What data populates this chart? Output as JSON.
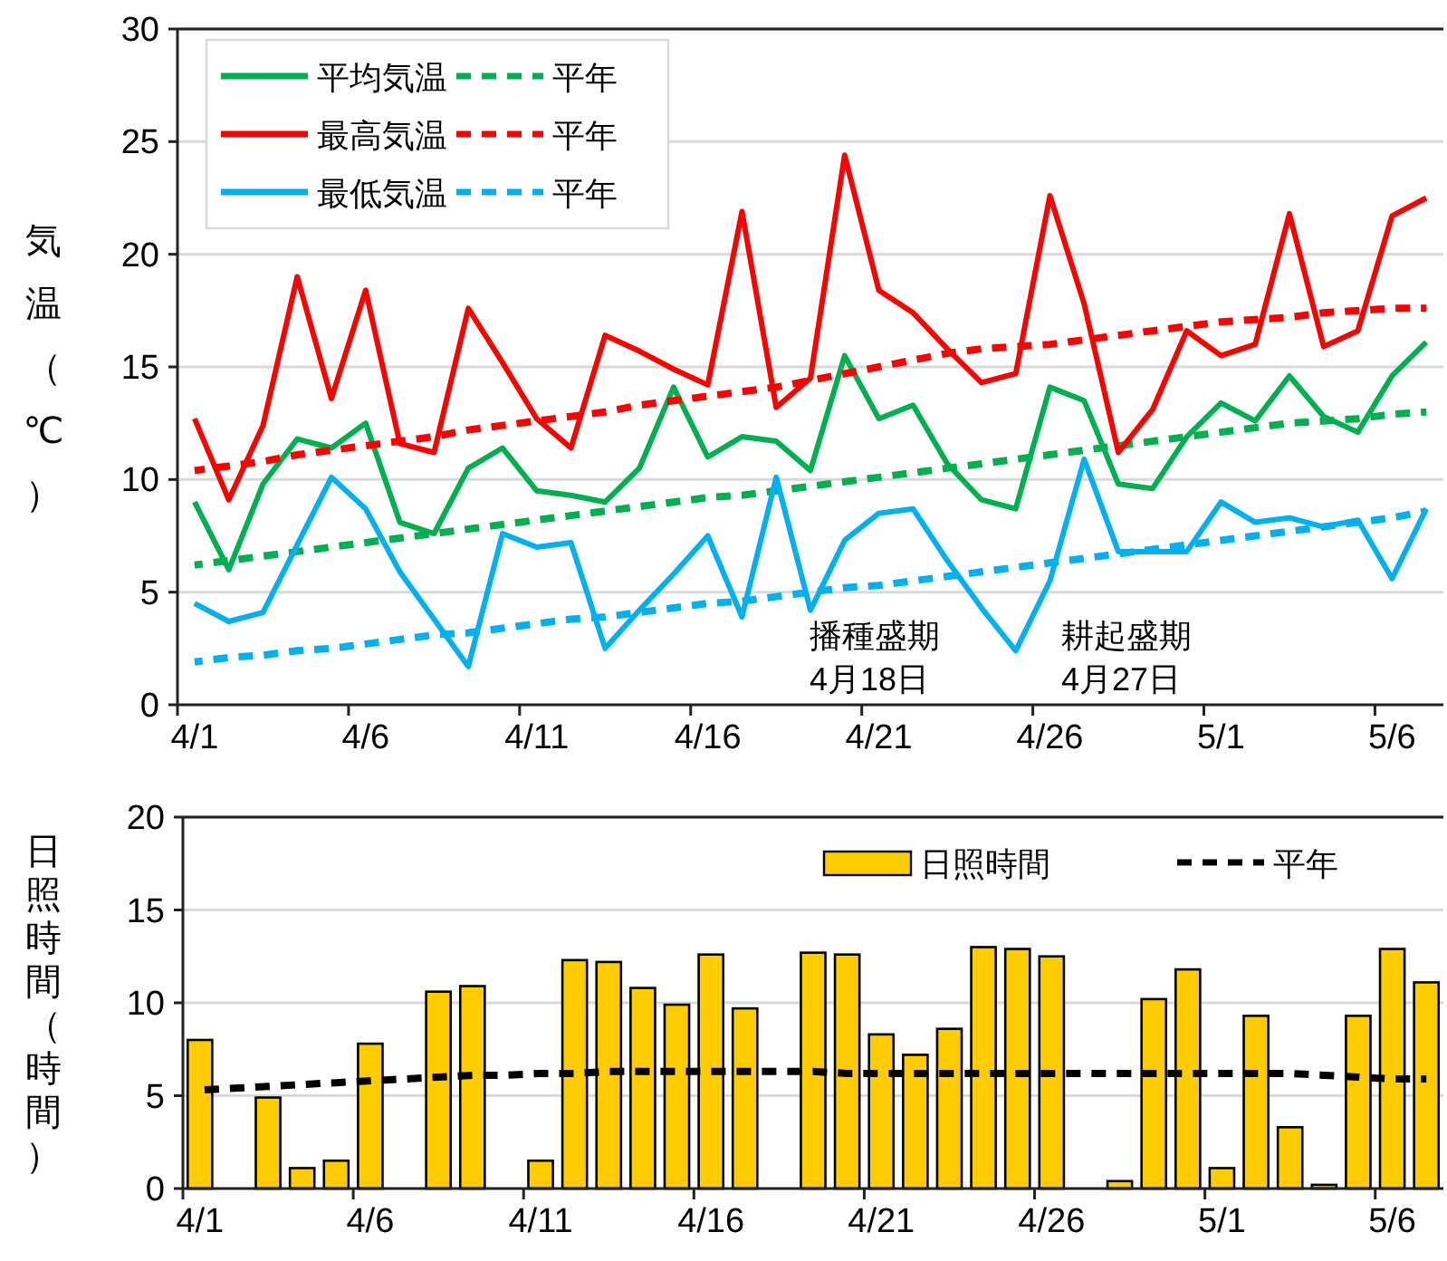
{
  "chart_data": [
    {
      "type": "line",
      "ylabel": "気温（℃）",
      "ylim": [
        0,
        30
      ],
      "yticks": [
        0,
        5,
        10,
        15,
        20,
        25,
        30
      ],
      "grid": "y",
      "legend": "top left",
      "categories": [
        "4/1",
        null,
        null,
        null,
        null,
        "4/6",
        null,
        null,
        null,
        null,
        "4/11",
        null,
        null,
        null,
        null,
        "4/16",
        null,
        null,
        null,
        null,
        "4/21",
        null,
        null,
        null,
        null,
        "4/26",
        null,
        null,
        null,
        null,
        "5/1",
        null,
        null,
        null,
        null,
        "5/6",
        null
      ],
      "annotations": [
        "播種盛期\n4月18日",
        "耕起盛期\n4月27日"
      ],
      "series": [
        {
          "name": "平均気温",
          "color": "#00b050",
          "values": [
            9.0,
            6.0,
            9.8,
            11.8,
            11.4,
            12.5,
            8.1,
            7.6,
            10.5,
            11.4,
            9.5,
            9.3,
            9.0,
            10.5,
            14.1,
            11.0,
            11.9,
            11.7,
            10.4,
            15.5,
            12.7,
            13.3,
            10.7,
            9.1,
            8.7,
            14.1,
            13.5,
            9.8,
            9.6,
            11.9,
            13.4,
            12.6,
            14.6,
            12.8,
            12.1,
            14.6,
            16.1
          ]
        },
        {
          "name": "平年",
          "color": "#00b050",
          "line_style": "dashed",
          "values": [
            6.2,
            6.4,
            6.6,
            6.8,
            7.0,
            7.2,
            7.4,
            7.6,
            7.8,
            8.0,
            8.2,
            8.4,
            8.6,
            8.8,
            9.0,
            9.2,
            9.3,
            9.5,
            9.7,
            9.9,
            10.1,
            10.3,
            10.5,
            10.7,
            10.9,
            11.1,
            11.3,
            11.5,
            11.7,
            11.9,
            12.1,
            12.3,
            12.5,
            12.6,
            12.7,
            12.9,
            13.0
          ]
        },
        {
          "name": "最高気温",
          "color": "#ff0000",
          "values": [
            12.7,
            9.1,
            12.4,
            19.0,
            13.6,
            18.4,
            11.6,
            11.2,
            17.6,
            15.2,
            12.7,
            11.4,
            16.4,
            15.7,
            14.9,
            14.2,
            21.9,
            13.2,
            14.5,
            24.4,
            18.4,
            17.4,
            15.8,
            14.3,
            14.7,
            22.6,
            17.8,
            11.2,
            13.1,
            16.6,
            15.5,
            16.0,
            21.8,
            15.9,
            16.6,
            21.7,
            22.5
          ]
        },
        {
          "name": "平年",
          "color": "#ff0000",
          "line_style": "dashed",
          "values": [
            10.4,
            10.6,
            10.8,
            11.1,
            11.3,
            11.5,
            11.7,
            11.9,
            12.2,
            12.4,
            12.6,
            12.8,
            13.0,
            13.3,
            13.5,
            13.7,
            13.9,
            14.1,
            14.4,
            14.7,
            15.0,
            15.3,
            15.6,
            15.8,
            15.9,
            16.0,
            16.2,
            16.4,
            16.6,
            16.8,
            17.0,
            17.1,
            17.2,
            17.4,
            17.5,
            17.6,
            17.6
          ]
        },
        {
          "name": "最低気温",
          "color": "#00b0f0",
          "values": [
            4.5,
            3.7,
            4.1,
            7.1,
            10.1,
            8.7,
            5.9,
            3.8,
            1.7,
            7.6,
            7.0,
            7.2,
            2.5,
            4.2,
            5.8,
            7.5,
            3.9,
            10.1,
            4.2,
            7.3,
            8.5,
            8.7,
            6.4,
            4.3,
            2.4,
            5.5,
            10.9,
            6.8,
            6.8,
            6.8,
            9.0,
            8.1,
            8.3,
            7.9,
            8.2,
            5.6,
            8.7
          ]
        },
        {
          "name": "平年",
          "color": "#00b0f0",
          "line_style": "dashed",
          "values": [
            1.9,
            2.1,
            2.2,
            2.4,
            2.5,
            2.7,
            2.9,
            3.1,
            3.2,
            3.4,
            3.6,
            3.8,
            3.9,
            4.1,
            4.3,
            4.5,
            4.6,
            4.8,
            5.0,
            5.2,
            5.3,
            5.5,
            5.7,
            5.9,
            6.1,
            6.3,
            6.5,
            6.7,
            6.9,
            7.1,
            7.3,
            7.5,
            7.7,
            7.9,
            8.1,
            8.3,
            8.6
          ]
        }
      ]
    },
    {
      "type": "bar",
      "ylabel": "日照時間（時間）",
      "ylim": [
        0,
        20
      ],
      "yticks": [
        0,
        5,
        10,
        15,
        20
      ],
      "grid": "y",
      "legend": "top right",
      "categories": [
        "4/1",
        null,
        null,
        null,
        null,
        "4/6",
        null,
        null,
        null,
        null,
        "4/11",
        null,
        null,
        null,
        null,
        "4/16",
        null,
        null,
        null,
        null,
        "4/21",
        null,
        null,
        null,
        null,
        "4/26",
        null,
        null,
        null,
        null,
        "5/1",
        null,
        null,
        null,
        null,
        "5/6",
        null
      ],
      "series": [
        {
          "name": "日照時間",
          "color": "#ffcc00",
          "values": [
            8.0,
            0,
            4.9,
            1.1,
            1.5,
            7.8,
            0,
            10.6,
            10.9,
            0,
            1.5,
            12.3,
            12.2,
            10.8,
            9.9,
            12.6,
            9.7,
            0,
            12.7,
            12.6,
            8.3,
            7.2,
            8.6,
            13.0,
            12.9,
            12.5,
            0,
            0.4,
            10.2,
            11.8,
            1.1,
            9.3,
            3.3,
            0.2,
            9.3,
            12.9,
            11.1
          ]
        },
        {
          "name": "平年",
          "type": "line",
          "color": "#000000",
          "line_style": "dashed",
          "values": [
            5.3,
            5.4,
            5.5,
            5.6,
            5.7,
            5.8,
            5.9,
            6.0,
            6.1,
            6.1,
            6.2,
            6.2,
            6.3,
            6.3,
            6.3,
            6.3,
            6.3,
            6.3,
            6.3,
            6.2,
            6.2,
            6.2,
            6.2,
            6.2,
            6.2,
            6.2,
            6.2,
            6.2,
            6.2,
            6.2,
            6.2,
            6.2,
            6.2,
            6.1,
            6.0,
            5.9,
            5.9
          ]
        }
      ]
    }
  ]
}
